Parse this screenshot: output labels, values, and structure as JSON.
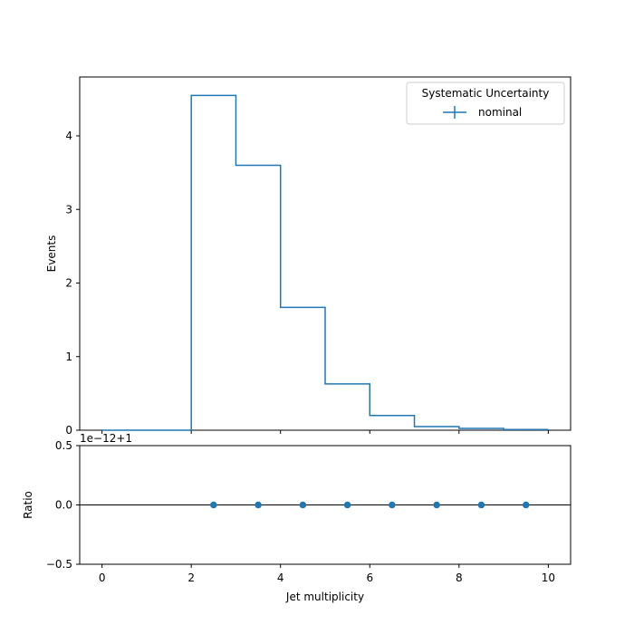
{
  "chart_data": [
    {
      "type": "step",
      "x_edges": [
        0,
        1,
        2,
        3,
        4,
        5,
        6,
        7,
        8,
        9,
        10
      ],
      "series": [
        {
          "name": "nominal",
          "values": [
            0.0,
            0.0,
            4.55,
            3.6,
            1.67,
            0.63,
            0.2,
            0.05,
            0.025,
            0.01
          ],
          "color": "#1f77b4"
        }
      ],
      "ylabel": "Events",
      "xlim": [
        -0.5,
        10.5
      ],
      "ylim": [
        0,
        4.8
      ],
      "yticks": [
        0,
        1,
        2,
        3,
        4
      ],
      "ytick_labels": [
        "0",
        "1",
        "2",
        "3",
        "4"
      ],
      "legend": {
        "title": "Systematic Uncertainty",
        "entries": [
          "nominal"
        ],
        "placement": "top-right"
      }
    },
    {
      "type": "scatter",
      "x": [
        2.5,
        3.5,
        4.5,
        5.5,
        6.5,
        7.5,
        8.5,
        9.5
      ],
      "y": [
        0.0,
        0.0,
        0.0,
        0.0,
        0.0,
        0.0,
        0.0,
        0.0
      ],
      "reference_line": 0.0,
      "offset_text": "1e−12+1",
      "xlabel": "Jet multiplicity",
      "ylabel": "Ratio",
      "xlim": [
        -0.5,
        10.5
      ],
      "ylim": [
        -0.5,
        0.5
      ],
      "xticks": [
        0,
        2,
        4,
        6,
        8,
        10
      ],
      "xtick_labels": [
        "0",
        "2",
        "4",
        "6",
        "8",
        "10"
      ],
      "yticks": [
        -0.5,
        0.0,
        0.5
      ],
      "ytick_labels": [
        "−0.5",
        "0.0",
        "0.5"
      ],
      "color": "#1f77b4"
    }
  ]
}
